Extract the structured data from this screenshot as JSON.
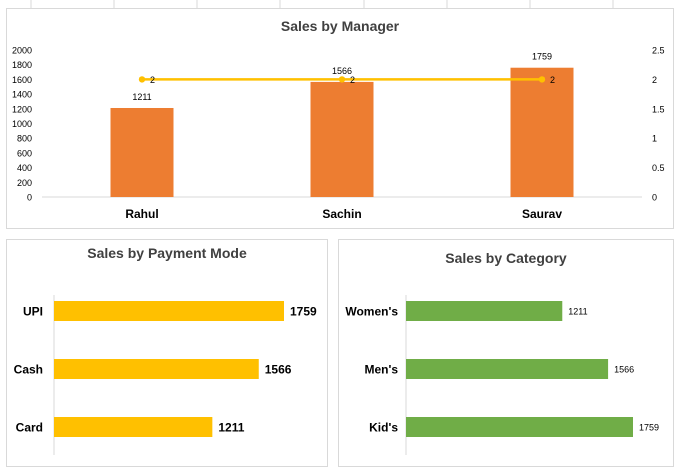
{
  "colors": {
    "orange_bar": "#ED7D31",
    "gold_line": "#FFC000",
    "gold_bar": "#FFC000",
    "green_bar": "#70AD47",
    "axis_text": "#000000",
    "title_text": "#404040",
    "panel_border": "#D9D9D9",
    "axis_line": "#D9D9D9"
  },
  "chart_data": [
    {
      "type": "bar",
      "title": "Sales by Manager",
      "categories": [
        "Rahul",
        "Sachin",
        "Saurav"
      ],
      "series": [
        {
          "type": "bar",
          "values": [
            1211,
            1566,
            1759
          ],
          "axis": "primary",
          "color": "#ED7D31",
          "data_labels": [
            "1211",
            "1566",
            "1759"
          ]
        },
        {
          "type": "line",
          "values": [
            2,
            2,
            2
          ],
          "axis": "secondary",
          "color": "#FFC000",
          "data_labels": [
            "2",
            "2",
            "2"
          ]
        }
      ],
      "ylim": [
        0,
        2000
      ],
      "yticks": [
        "0",
        "200",
        "400",
        "600",
        "800",
        "1000",
        "1200",
        "1400",
        "1600",
        "1800",
        "2000"
      ],
      "y2lim": [
        0,
        2.5
      ],
      "y2ticks": [
        "0",
        "0.5",
        "1",
        "1.5",
        "2",
        "2.5"
      ],
      "grid": false,
      "legend": "none"
    },
    {
      "type": "bar",
      "orientation": "horizontal",
      "title": "Sales by Payment Mode",
      "categories": [
        "UPI",
        "Cash",
        "Card"
      ],
      "values": [
        1759,
        1566,
        1211
      ],
      "data_labels": [
        "1759",
        "1566",
        "1211"
      ],
      "color": "#FFC000",
      "grid": false,
      "legend": "none"
    },
    {
      "type": "bar",
      "orientation": "horizontal",
      "title": "Sales by Category",
      "categories": [
        "Women's",
        "Men's",
        "Kid's"
      ],
      "values": [
        1211,
        1566,
        1759
      ],
      "data_labels": [
        "1211",
        "1566",
        "1759"
      ],
      "color": "#70AD47",
      "grid": false,
      "legend": "none"
    }
  ]
}
